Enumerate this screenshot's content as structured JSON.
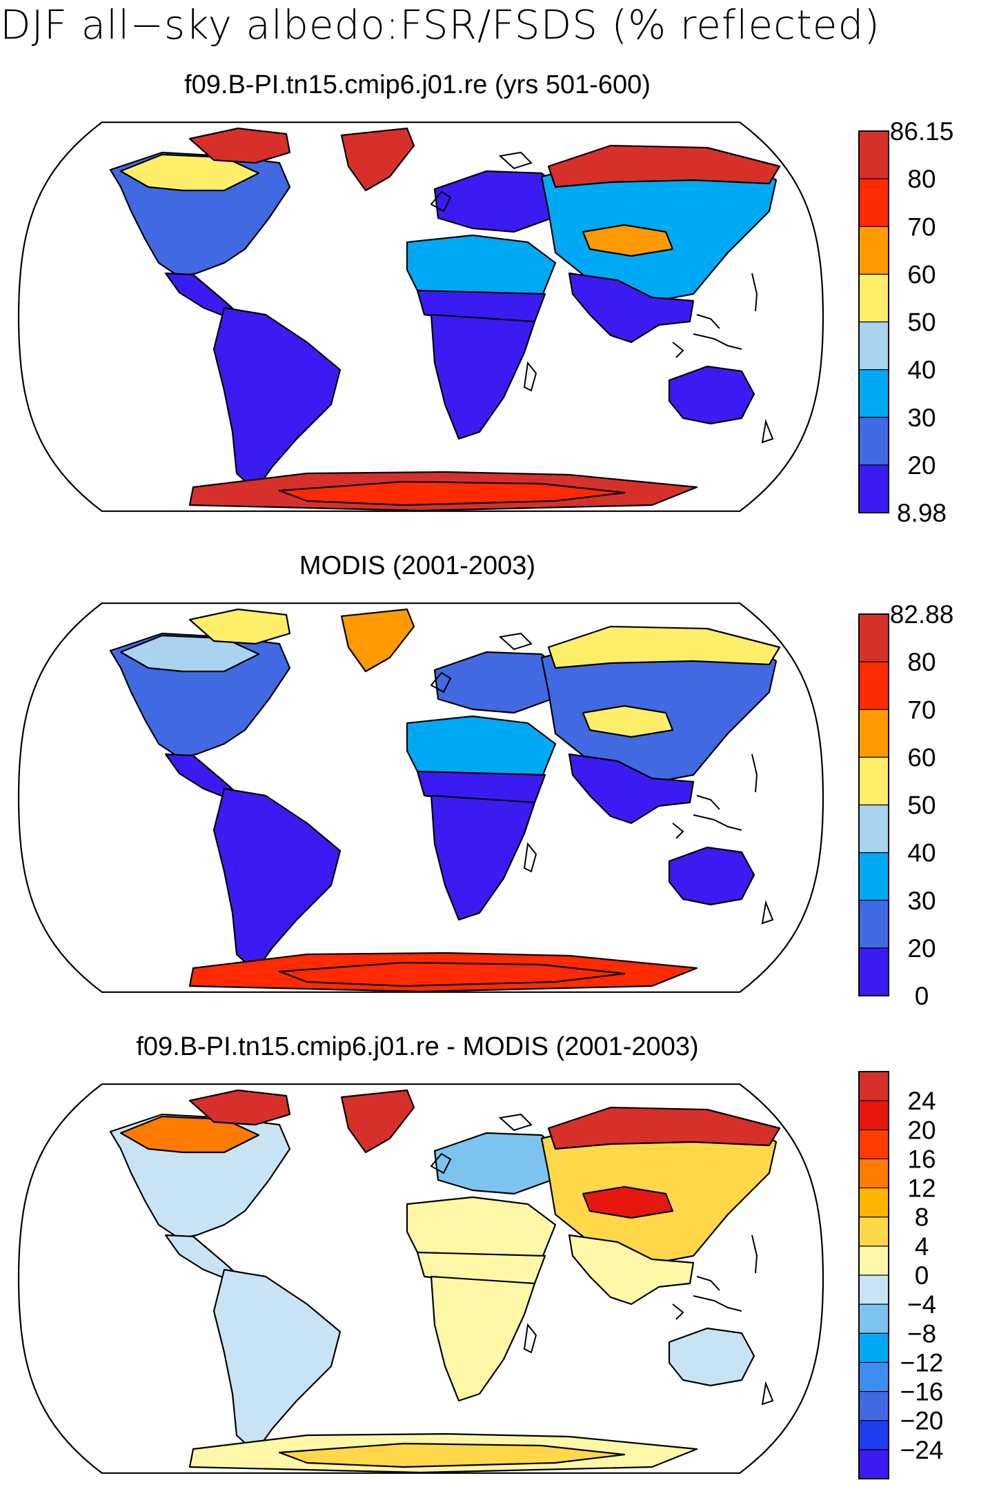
{
  "figure": {
    "title": "DJF all−sky albedo:FSR/FSDS (% reflected)"
  },
  "panels": [
    {
      "id": "model",
      "title": "f09.B-PI.tn15.cmip6.j01.re (yrs 501-600)",
      "colorbar": {
        "labels": [
          "86.15",
          "80",
          "70",
          "60",
          "50",
          "40",
          "30",
          "20",
          "8.98"
        ],
        "colors": [
          "#d7302a",
          "#ff2a00",
          "#ff9a00",
          "#ffee6a",
          "#a9d3ee",
          "#00a9f4",
          "#4169e1",
          "#3a1cf2"
        ]
      },
      "regions": {
        "north_america": "#4169e1",
        "canada_north": "#ffee6a",
        "arctic_islands": "#d7302a",
        "greenland": "#d7302a",
        "central_america": "#3a1cf2",
        "south_america": "#3a1cf2",
        "europe": "#3a1cf2",
        "north_africa": "#00a9f4",
        "sahel": "#3a1cf2",
        "africa_south": "#3a1cf2",
        "asia": "#00a9f4",
        "siberia": "#d7302a",
        "tibet": "#ff9a00",
        "south_asia": "#3a1cf2",
        "australia": "#3a1cf2",
        "antarctica": "#d7302a",
        "antarctica_inner": "#ff2a00"
      }
    },
    {
      "id": "obs",
      "title": "MODIS (2001-2003)",
      "colorbar": {
        "labels": [
          "82.88",
          "80",
          "70",
          "60",
          "50",
          "40",
          "30",
          "20",
          "0"
        ],
        "colors": [
          "#d7302a",
          "#ff2a00",
          "#ff9a00",
          "#ffee6a",
          "#a9d3ee",
          "#00a9f4",
          "#4169e1",
          "#3a1cf2"
        ]
      },
      "regions": {
        "north_america": "#4169e1",
        "canada_north": "#a9d3ee",
        "arctic_islands": "#ffee6a",
        "greenland": "#ff9a00",
        "central_america": "#3a1cf2",
        "south_america": "#3a1cf2",
        "europe": "#4169e1",
        "north_africa": "#00a9f4",
        "sahel": "#3a1cf2",
        "africa_south": "#3a1cf2",
        "asia": "#4169e1",
        "siberia": "#ffee6a",
        "tibet": "#ffee6a",
        "south_asia": "#3a1cf2",
        "australia": "#3a1cf2",
        "antarctica": "#ff2a00",
        "antarctica_inner": "#ff2a00"
      }
    },
    {
      "id": "diff",
      "title": "f09.B-PI.tn15.cmip6.j01.re - MODIS (2001-2003)",
      "colorbar": {
        "labels": [
          "24",
          "20",
          "16",
          "12",
          "8",
          "4",
          "0",
          "−4",
          "−8",
          "−12",
          "−16",
          "−20",
          "−24"
        ],
        "colors": [
          "#d7302a",
          "#e8170d",
          "#ff3c00",
          "#ff7a00",
          "#ffb400",
          "#ffd84a",
          "#fff7a8",
          "#c8e4f4",
          "#7cc4ef",
          "#00a9f4",
          "#3e8ef0",
          "#4169e1",
          "#1f3cf0",
          "#3a1cf2"
        ]
      },
      "regions": {
        "north_america": "#c8e4f4",
        "canada_north": "#ff7a00",
        "arctic_islands": "#d7302a",
        "greenland": "#d7302a",
        "central_america": "#c8e4f4",
        "south_america": "#c8e4f4",
        "europe": "#7cc4ef",
        "north_africa": "#fff7a8",
        "sahel": "#fff7a8",
        "africa_south": "#fff7a8",
        "asia": "#ffd84a",
        "siberia": "#d7302a",
        "tibet": "#e8170d",
        "south_asia": "#fff7a8",
        "australia": "#c8e4f4",
        "antarctica": "#fff7a8",
        "antarctica_inner": "#ffd84a"
      }
    }
  ]
}
